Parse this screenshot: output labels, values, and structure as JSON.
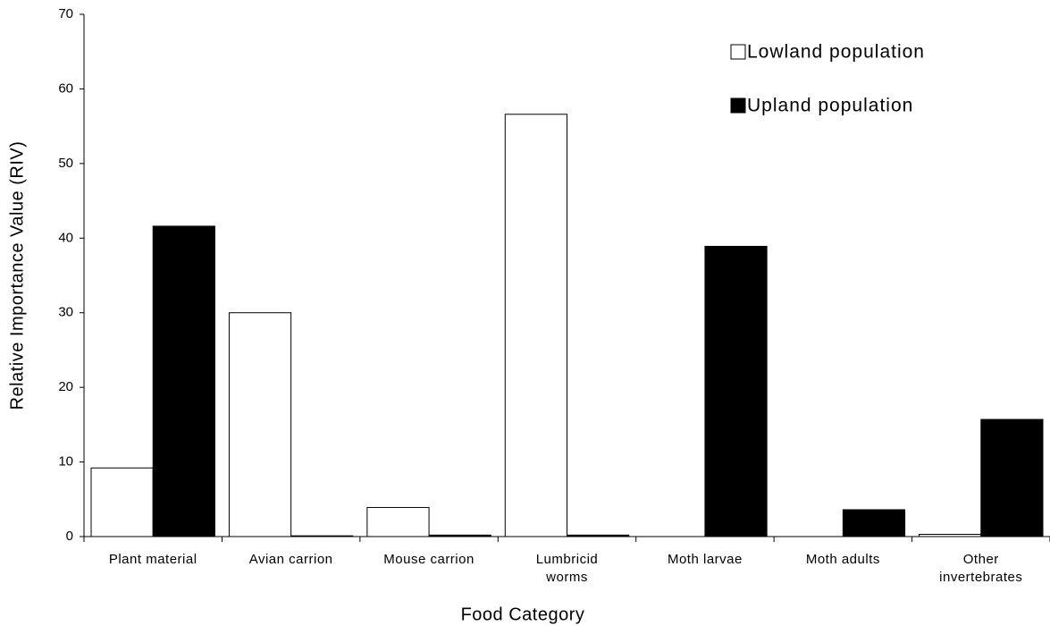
{
  "chart_data": {
    "type": "bar",
    "x_label": "Food Category",
    "y_label": "Relative Importance Value (RIV)",
    "categories": [
      "Plant material",
      "Avian carrion",
      "Mouse carrion",
      "Lumbricid\nworms",
      "Moth larvae",
      "Moth adults",
      "Other\ninvertebrates"
    ],
    "series": [
      {
        "name": "Lowland population",
        "color": "#ffffff",
        "values": [
          9.2,
          30,
          3.9,
          56.6,
          0,
          0,
          0.3
        ]
      },
      {
        "name": "Upland population",
        "color": "#000000",
        "values": [
          41.6,
          0.1,
          0.2,
          0.2,
          38.9,
          3.6,
          15.7
        ]
      }
    ],
    "ylim": [
      0,
      70
    ],
    "yticks": [
      0,
      10,
      20,
      30,
      40,
      50,
      60,
      70
    ],
    "legend": "upper right",
    "grid": false
  }
}
